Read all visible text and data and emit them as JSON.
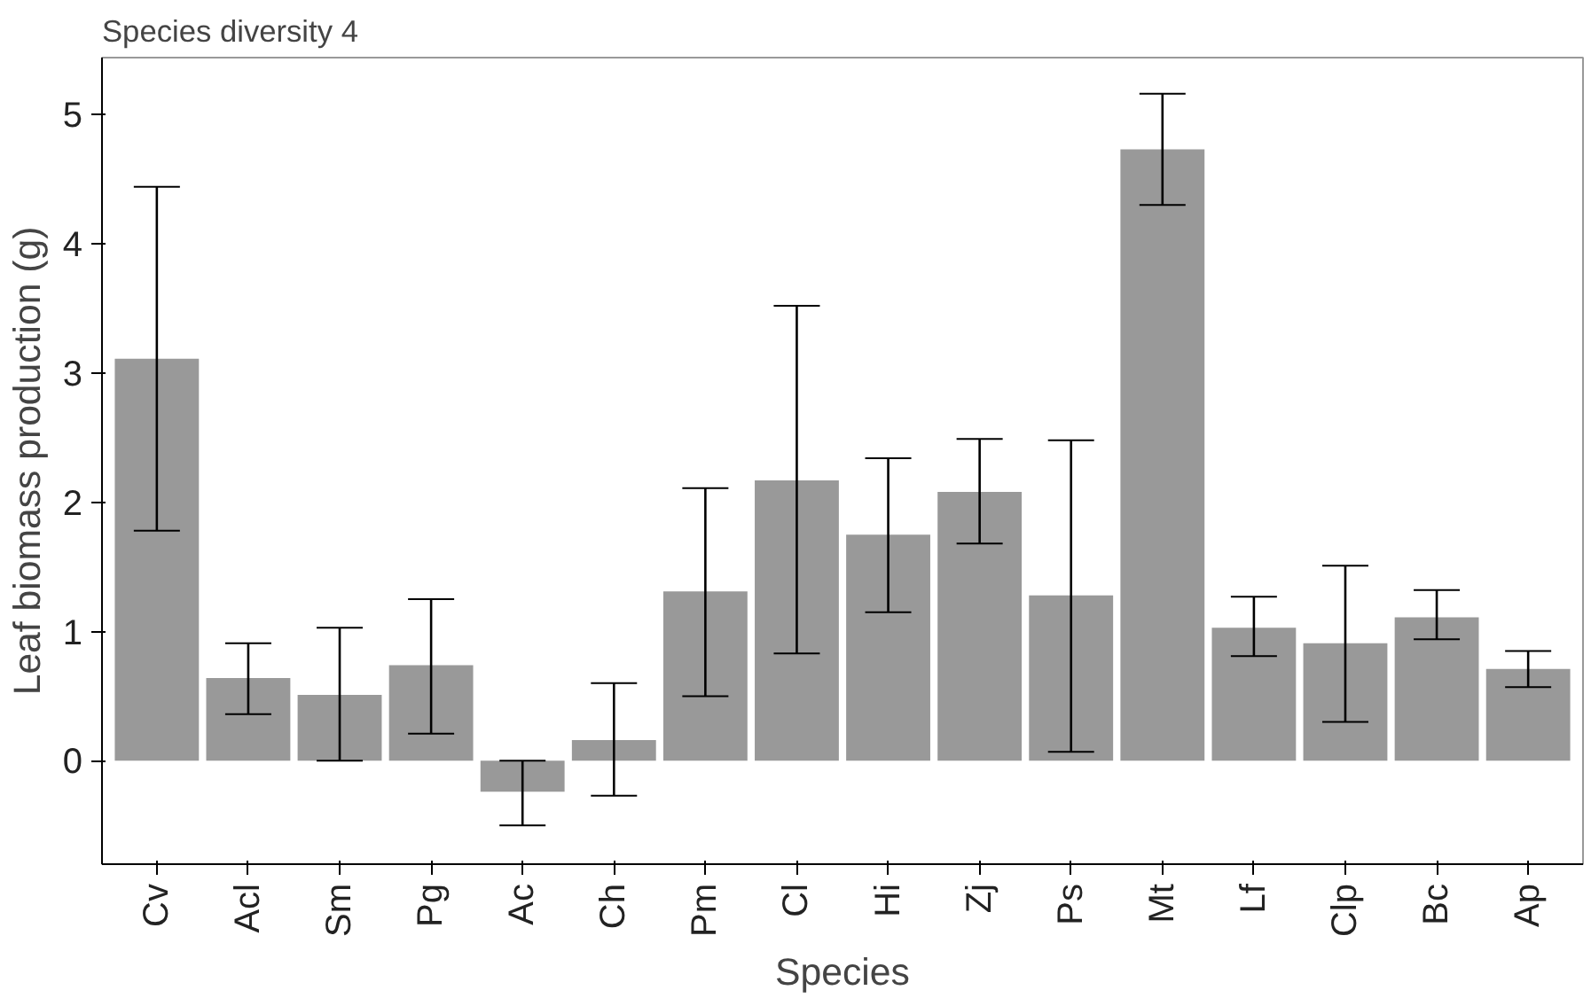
{
  "chart_data": {
    "type": "bar",
    "title": "Species diversity 4",
    "xlabel": "Species",
    "ylabel": "Leaf biomass production (g)",
    "categories": [
      "Cv",
      "Acl",
      "Sm",
      "Pg",
      "Ac",
      "Ch",
      "Pm",
      "Cl",
      "Hi",
      "Zj",
      "Ps",
      "Mt",
      "Lf",
      "Clp",
      "Bc",
      "Ap"
    ],
    "series": [
      {
        "color": "#999999",
        "values": [
          3.11,
          0.64,
          0.51,
          0.74,
          -0.24,
          0.16,
          1.31,
          2.17,
          1.75,
          2.08,
          1.28,
          4.73,
          1.03,
          0.91,
          1.11,
          0.71
        ],
        "errors": [
          [
            1.78,
            4.44
          ],
          [
            0.36,
            0.91
          ],
          [
            0.0,
            1.03
          ],
          [
            0.21,
            1.25
          ],
          [
            -0.5,
            0.0
          ],
          [
            -0.27,
            0.6
          ],
          [
            0.5,
            2.11
          ],
          [
            0.83,
            3.52
          ],
          [
            1.15,
            2.34
          ],
          [
            1.68,
            2.49
          ],
          [
            0.07,
            2.48
          ],
          [
            4.3,
            5.16
          ],
          [
            0.81,
            1.27
          ],
          [
            0.3,
            1.51
          ],
          [
            0.94,
            1.32
          ],
          [
            0.57,
            0.85
          ]
        ]
      }
    ],
    "ylim": [
      -0.8,
      5.44
    ],
    "yticks": [
      0,
      1,
      2,
      3,
      4,
      5
    ],
    "grid": false
  }
}
